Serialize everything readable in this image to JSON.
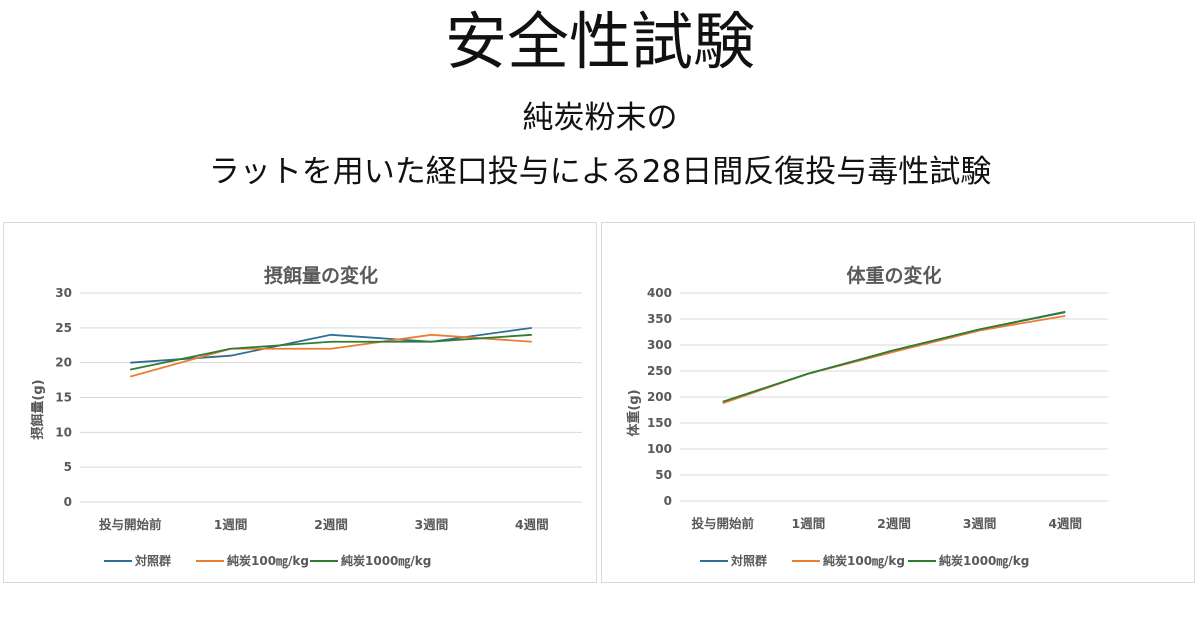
{
  "header": {
    "title": "安全性試験",
    "subtitle_line1": "純炭粉末の",
    "subtitle_line2": "ラットを用いた経口投与による28日間反復投与毒性試験"
  },
  "colors": {
    "control": "#2e6f95",
    "low": "#ed7d31",
    "high": "#2e7d32",
    "grid": "#d9d9d9",
    "text": "#595959"
  },
  "chart_data": [
    {
      "type": "line",
      "title": "摂餌量の変化",
      "xlabel": "",
      "ylabel": "摂餌量(g)",
      "categories": [
        "投与開始前",
        "1週間",
        "2週間",
        "3週間",
        "4週間"
      ],
      "ylim": [
        0,
        30
      ],
      "yticks": [
        0,
        5,
        10,
        15,
        20,
        25,
        30
      ],
      "grid": true,
      "legend": "bottom",
      "series": [
        {
          "name": "対照群",
          "color": "#2e6f95",
          "values": [
            20,
            21,
            24,
            23,
            25
          ]
        },
        {
          "name": "純炭100㎎/kg",
          "color": "#ed7d31",
          "values": [
            18,
            22,
            22,
            24,
            23
          ]
        },
        {
          "name": "純炭1000㎎/kg",
          "color": "#2e7d32",
          "values": [
            19,
            22,
            23,
            23,
            24
          ]
        }
      ]
    },
    {
      "type": "line",
      "title": "体重の変化",
      "xlabel": "",
      "ylabel": "体重(g)",
      "categories": [
        "投与開始前",
        "1週間",
        "2週間",
        "3週間",
        "4週間"
      ],
      "ylim": [
        0,
        400
      ],
      "yticks": [
        0,
        50,
        100,
        150,
        200,
        250,
        300,
        350,
        400
      ],
      "grid": true,
      "legend": "bottom",
      "series": [
        {
          "name": "対照群",
          "color": "#2e6f95",
          "values": [
            190,
            245,
            290,
            330,
            363
          ]
        },
        {
          "name": "純炭100㎎/kg",
          "color": "#ed7d31",
          "values": [
            188,
            245,
            287,
            328,
            356
          ]
        },
        {
          "name": "純炭1000㎎/kg",
          "color": "#2e7d32",
          "values": [
            191,
            245,
            290,
            330,
            364
          ]
        }
      ]
    }
  ]
}
